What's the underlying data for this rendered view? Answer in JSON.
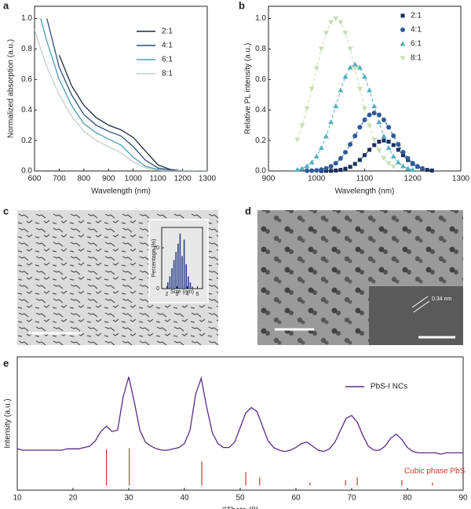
{
  "figure": {
    "panel_labels": [
      "a",
      "b",
      "c",
      "d",
      "e"
    ],
    "lattice_label": "0.34 nm"
  },
  "chart_data": [
    {
      "type": "line",
      "xlabel": "Wavelength (nm)",
      "ylabel": "Normalized absorption (a.u.)",
      "x": [
        600,
        625,
        650,
        700,
        750,
        800,
        850,
        900,
        950,
        1000,
        1050,
        1100,
        1150,
        1200,
        1250,
        1300
      ],
      "series": [
        {
          "name": "2:1",
          "color": "#1b2a3a",
          "values": [
            null,
            null,
            null,
            0.76,
            0.56,
            0.43,
            0.35,
            0.3,
            0.27,
            0.22,
            0.13,
            0.04,
            0.01,
            0,
            0,
            0
          ]
        },
        {
          "name": "4:1",
          "color": "#2b4f7e",
          "values": [
            null,
            null,
            1.0,
            0.68,
            0.5,
            0.37,
            0.3,
            0.26,
            0.23,
            0.16,
            0.07,
            0.02,
            0.005,
            0,
            0,
            0
          ]
        },
        {
          "name": "6:1",
          "color": "#4a9db0",
          "values": [
            null,
            1.0,
            0.85,
            0.6,
            0.43,
            0.31,
            0.25,
            0.21,
            0.17,
            0.09,
            0.03,
            0.01,
            0,
            0,
            0,
            0
          ]
        },
        {
          "name": "8:1",
          "color": "#c4cfcb",
          "values": [
            0.93,
            0.8,
            0.68,
            0.5,
            0.36,
            0.26,
            0.2,
            0.16,
            0.12,
            0.06,
            0.02,
            0.005,
            0,
            0,
            0,
            0
          ]
        }
      ],
      "xlim": [
        600,
        1300
      ],
      "xticks": [
        600,
        700,
        800,
        900,
        1000,
        1100,
        1200,
        1300
      ],
      "ylim": [
        0,
        1.08
      ],
      "yticks": [
        {
          "value": 0,
          "label": "0.0"
        },
        0.2,
        0.4,
        0.6,
        0.8,
        {
          "value": 1,
          "label": "1.0"
        }
      ],
      "legend": "upper right"
    },
    {
      "type": "scatter",
      "xlabel": "Wavelength (nm)",
      "ylabel": "Relative PL intensity (a.u.)",
      "fit_line": "dashed",
      "series": [
        {
          "name": "2:1",
          "color": "#1a2e5a",
          "marker": "square",
          "x": [
            1010,
            1020,
            1030,
            1040,
            1050,
            1060,
            1070,
            1080,
            1090,
            1100,
            1110,
            1120,
            1130,
            1140,
            1150,
            1160,
            1170,
            1180,
            1190,
            1200,
            1210,
            1220,
            1230,
            1240
          ],
          "values": [
            0,
            0.001,
            0.001,
            0.003,
            0.007,
            0.015,
            0.027,
            0.046,
            0.072,
            0.104,
            0.139,
            0.17,
            0.192,
            0.2,
            0.192,
            0.17,
            0.139,
            0.104,
            0.072,
            0.046,
            0.027,
            0.015,
            0.007,
            0.003
          ]
        },
        {
          "name": "4:1",
          "color": "#2d5b9a",
          "marker": "circle",
          "x": [
            980,
            990,
            1000,
            1010,
            1020,
            1030,
            1040,
            1050,
            1060,
            1070,
            1080,
            1090,
            1100,
            1110,
            1120,
            1130,
            1140,
            1150,
            1160,
            1170,
            1180,
            1190,
            1200,
            1210,
            1220
          ],
          "values": [
            0.001,
            0.002,
            0.004,
            0.009,
            0.017,
            0.03,
            0.051,
            0.082,
            0.123,
            0.174,
            0.23,
            0.287,
            0.335,
            0.368,
            0.38,
            0.368,
            0.335,
            0.287,
            0.23,
            0.174,
            0.123,
            0.082,
            0.051,
            0.03,
            0.017
          ]
        },
        {
          "name": "6:1",
          "color": "#4fb0be",
          "marker": "triangle-up",
          "x": [
            960,
            970,
            980,
            990,
            1000,
            1010,
            1020,
            1030,
            1040,
            1050,
            1060,
            1070,
            1080,
            1090,
            1100,
            1110,
            1120,
            1130,
            1140,
            1150,
            1160,
            1170,
            1180,
            1190,
            1200
          ],
          "values": [
            0.008,
            0.016,
            0.031,
            0.056,
            0.095,
            0.151,
            0.227,
            0.32,
            0.425,
            0.529,
            0.618,
            0.678,
            0.7,
            0.678,
            0.618,
            0.529,
            0.425,
            0.32,
            0.227,
            0.151,
            0.095,
            0.056,
            0.031,
            0.016,
            0.008
          ]
        },
        {
          "name": "8:1",
          "color": "#c8dcb0",
          "marker": "triangle-down",
          "x": [
            960,
            970,
            980,
            990,
            1000,
            1010,
            1020,
            1030,
            1040,
            1050,
            1060,
            1070,
            1080,
            1090,
            1100,
            1110,
            1120,
            1130,
            1140,
            1150,
            1160
          ],
          "values": [
            0.206,
            0.298,
            0.411,
            0.539,
            0.674,
            0.801,
            0.906,
            0.976,
            1.0,
            0.976,
            0.906,
            0.801,
            0.674,
            0.539,
            0.411,
            0.298,
            0.206,
            0.135,
            0.084,
            0.051,
            0.029
          ]
        }
      ],
      "xlim": [
        900,
        1300
      ],
      "xticks": [
        900,
        1000,
        1100,
        1200,
        1300
      ],
      "ylim": [
        0,
        1.08
      ],
      "yticks": [
        {
          "value": 0,
          "label": "0.0"
        },
        0.2,
        0.4,
        0.6,
        0.8,
        {
          "value": 1,
          "label": "1.0"
        }
      ],
      "legend": "upper right"
    },
    {
      "type": "histogram",
      "xlabel": "Size (nm)",
      "ylabel": "Percentage (%)",
      "color": "#2b3f8a",
      "bins": [
        2.0,
        2.2,
        2.4,
        2.6,
        2.8,
        3.0,
        3.2,
        3.4,
        3.6,
        3.8,
        4.0,
        4.2,
        4.4,
        4.6
      ],
      "counts": [
        3,
        6,
        10,
        14,
        18,
        22,
        27,
        16,
        24,
        12,
        6,
        3,
        1
      ],
      "xlim": [
        1.5,
        5.5
      ],
      "xticks": [
        2,
        3,
        4,
        5
      ],
      "ylim": [
        0,
        30
      ],
      "yticks": [
        0,
        20
      ]
    },
    {
      "type": "line",
      "xlabel": "2Theta (θ)",
      "ylabel": "Intensity (a.u.)",
      "x": [
        10,
        11,
        12,
        13,
        14,
        15,
        16,
        17,
        18,
        19,
        20,
        21,
        22,
        23,
        24,
        25,
        26,
        27,
        28,
        29,
        30,
        31,
        32,
        33,
        34,
        35,
        36,
        37,
        38,
        39,
        40,
        41,
        42,
        43,
        44,
        45,
        46,
        47,
        48,
        49,
        50,
        51,
        52,
        53,
        54,
        55,
        56,
        57,
        58,
        59,
        60,
        61,
        62,
        63,
        64,
        65,
        66,
        67,
        68,
        69,
        70,
        71,
        72,
        73,
        74,
        75,
        76,
        77,
        78,
        79,
        80,
        81,
        82,
        83,
        84,
        85,
        86,
        87,
        88,
        89,
        90
      ],
      "series": [
        {
          "name": "PbS-I NCs",
          "color": "#5b2a86",
          "values": [
            0.31,
            0.3,
            0.3,
            0.3,
            0.3,
            0.3,
            0.3,
            0.3,
            0.3,
            0.31,
            0.31,
            0.31,
            0.32,
            0.33,
            0.37,
            0.44,
            0.48,
            0.44,
            0.45,
            0.7,
            0.85,
            0.66,
            0.45,
            0.36,
            0.33,
            0.31,
            0.3,
            0.3,
            0.31,
            0.32,
            0.35,
            0.45,
            0.72,
            0.84,
            0.62,
            0.43,
            0.35,
            0.32,
            0.32,
            0.36,
            0.47,
            0.58,
            0.62,
            0.59,
            0.48,
            0.37,
            0.32,
            0.3,
            0.29,
            0.3,
            0.32,
            0.35,
            0.36,
            0.33,
            0.3,
            0.29,
            0.31,
            0.36,
            0.45,
            0.54,
            0.56,
            0.51,
            0.41,
            0.33,
            0.3,
            0.3,
            0.33,
            0.39,
            0.42,
            0.38,
            0.32,
            0.29,
            0.28,
            0.28,
            0.28,
            0.28,
            0.27,
            0.28,
            0.28,
            0.28,
            0.28
          ]
        }
      ],
      "reference": {
        "name": "Cubic phase PbS",
        "color": "#c0392b",
        "x": [
          26.0,
          30.1,
          43.1,
          51.0,
          53.5,
          62.5,
          68.9,
          71.0,
          79.0,
          84.5
        ],
        "values": [
          0.27,
          0.28,
          0.18,
          0.1,
          0.06,
          0.02,
          0.04,
          0.06,
          0.04,
          0.02
        ]
      },
      "xlim": [
        10,
        90
      ],
      "xticks": [
        10,
        20,
        30,
        40,
        50,
        60,
        70,
        80,
        90
      ],
      "ylim": [
        0,
        1
      ],
      "legend": "upper right"
    }
  ]
}
